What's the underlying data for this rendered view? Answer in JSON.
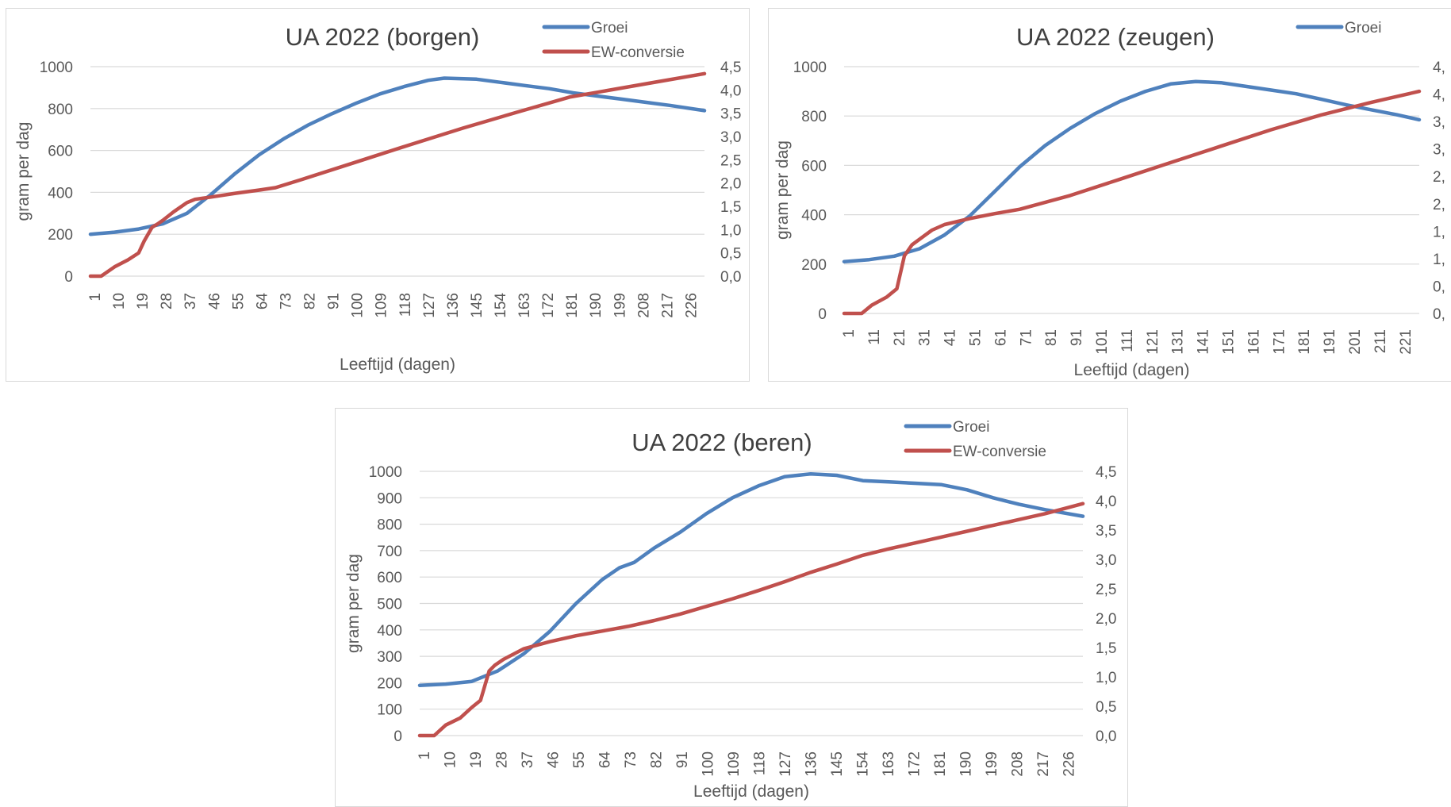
{
  "colors": {
    "groei": "#4f81bd",
    "ew": "#c0504d",
    "grid": "#d9d9d9",
    "text": "#595959"
  },
  "chart_data": [
    {
      "id": "borgen",
      "type": "line",
      "title": "UA 2022 (borgen)",
      "xlabel": "Leeftijd (dagen)",
      "ylabel": "gram per dag",
      "ylim": [
        0,
        1000
      ],
      "y_ticks": [
        "0",
        "200",
        "400",
        "600",
        "800",
        "1000"
      ],
      "y2lim": [
        0,
        4.5
      ],
      "y2_ticks": [
        "0,0",
        "0,5",
        "1,0",
        "1,5",
        "2,0",
        "2,5",
        "3,0",
        "3,5",
        "4,0",
        "4,5"
      ],
      "xlim": [
        1,
        230
      ],
      "x_ticks": [
        "1",
        "10",
        "19",
        "28",
        "37",
        "46",
        "55",
        "64",
        "73",
        "82",
        "91",
        "100",
        "109",
        "118",
        "127",
        "136",
        "145",
        "154",
        "163",
        "172",
        "181",
        "190",
        "199",
        "208",
        "217",
        "226"
      ],
      "grid": "horizontal",
      "legend_placement": "top-right",
      "series": [
        {
          "name": "Groei",
          "axis": "left",
          "x": [
            1,
            10,
            19,
            28,
            37,
            46,
            55,
            64,
            73,
            82,
            91,
            100,
            109,
            118,
            127,
            133,
            145,
            154,
            163,
            172,
            181,
            190,
            199,
            208,
            217,
            230
          ],
          "y": [
            200,
            210,
            225,
            250,
            300,
            390,
            490,
            580,
            655,
            720,
            775,
            825,
            870,
            905,
            935,
            945,
            940,
            925,
            910,
            895,
            875,
            860,
            845,
            830,
            815,
            790
          ]
        },
        {
          "name": "EW-conversie",
          "axis": "right",
          "x": [
            1,
            5,
            10,
            15,
            19,
            21,
            24,
            26,
            28,
            32,
            37,
            40,
            46,
            55,
            64,
            70,
            80,
            100,
            120,
            140,
            160,
            180,
            190,
            210,
            230
          ],
          "y": [
            0,
            0,
            0.2,
            0.35,
            0.5,
            0.75,
            1.05,
            1.12,
            1.2,
            1.38,
            1.58,
            1.65,
            1.7,
            1.78,
            1.85,
            1.9,
            2.08,
            2.45,
            2.82,
            3.18,
            3.52,
            3.85,
            3.95,
            4.15,
            4.35
          ]
        }
      ]
    },
    {
      "id": "zeugen",
      "type": "line",
      "title": "UA 2022 (zeugen)",
      "xlabel": "Leeftijd (dagen)",
      "ylabel": "gram per dag",
      "ylim": [
        0,
        1000
      ],
      "y_ticks": [
        "0",
        "200",
        "400",
        "600",
        "800",
        "1000"
      ],
      "y2_ticks": [
        "0,",
        "0,",
        "1,",
        "1,",
        "2,",
        "2,",
        "3,",
        "3,",
        "4,",
        "4,"
      ],
      "xlim": [
        1,
        230
      ],
      "x_ticks": [
        "1",
        "11",
        "21",
        "31",
        "41",
        "51",
        "61",
        "71",
        "81",
        "91",
        "101",
        "111",
        "121",
        "131",
        "141",
        "151",
        "161",
        "171",
        "181",
        "191",
        "201",
        "211",
        "221"
      ],
      "grid": "horizontal",
      "legend_placement": "top-right",
      "series": [
        {
          "name": "Groei",
          "axis": "left",
          "x": [
            1,
            11,
            21,
            31,
            41,
            51,
            61,
            71,
            81,
            91,
            101,
            111,
            121,
            131,
            141,
            151,
            161,
            171,
            181,
            191,
            201,
            211,
            221,
            230
          ],
          "y": [
            210,
            218,
            232,
            262,
            318,
            395,
            495,
            595,
            680,
            750,
            810,
            860,
            900,
            930,
            940,
            935,
            920,
            905,
            890,
            868,
            845,
            825,
            805,
            785
          ]
        },
        {
          "name": "EW-conversie",
          "axis": "right",
          "x": [
            1,
            8,
            12,
            18,
            22,
            25,
            28,
            33,
            36,
            41,
            51,
            61,
            71,
            91,
            111,
            131,
            151,
            171,
            191,
            211,
            230
          ],
          "y": [
            0,
            0,
            0.15,
            0.3,
            0.45,
            1.05,
            1.25,
            1.42,
            1.52,
            1.62,
            1.73,
            1.82,
            1.9,
            2.15,
            2.45,
            2.75,
            3.05,
            3.35,
            3.62,
            3.85,
            4.05
          ]
        }
      ]
    },
    {
      "id": "beren",
      "type": "line",
      "title": "UA 2022 (beren)",
      "xlabel": "Leeftijd (dagen)",
      "ylabel": "gram per dag",
      "ylim": [
        0,
        1000
      ],
      "y_ticks": [
        "0",
        "100",
        "200",
        "300",
        "400",
        "500",
        "600",
        "700",
        "800",
        "900",
        "1000"
      ],
      "y2lim": [
        0,
        4.5
      ],
      "y2_ticks": [
        "0,0",
        "0,5",
        "1,0",
        "1,5",
        "2,0",
        "2,5",
        "3,0",
        "3,5",
        "4,0",
        "4,5"
      ],
      "xlim": [
        1,
        230
      ],
      "x_ticks": [
        "1",
        "10",
        "19",
        "28",
        "37",
        "46",
        "55",
        "64",
        "73",
        "82",
        "91",
        "100",
        "109",
        "118",
        "127",
        "136",
        "145",
        "154",
        "163",
        "172",
        "181",
        "190",
        "199",
        "208",
        "217",
        "226"
      ],
      "grid": "horizontal",
      "legend_placement": "top-right",
      "series": [
        {
          "name": "Groei",
          "axis": "left",
          "x": [
            1,
            10,
            19,
            28,
            37,
            46,
            55,
            64,
            70,
            75,
            82,
            91,
            100,
            109,
            118,
            127,
            136,
            145,
            154,
            163,
            172,
            181,
            190,
            199,
            208,
            217,
            230
          ],
          "y": [
            190,
            195,
            205,
            245,
            310,
            395,
            500,
            590,
            635,
            655,
            710,
            770,
            840,
            900,
            945,
            980,
            990,
            985,
            965,
            960,
            955,
            950,
            930,
            900,
            875,
            855,
            830
          ]
        },
        {
          "name": "EW-conversie",
          "axis": "right",
          "x": [
            1,
            6,
            10,
            15,
            19,
            22,
            25,
            27,
            30,
            37,
            46,
            55,
            64,
            73,
            82,
            91,
            100,
            109,
            118,
            127,
            136,
            145,
            154,
            163,
            172,
            181,
            190,
            199,
            208,
            217,
            230
          ],
          "y": [
            0,
            0,
            0.18,
            0.3,
            0.48,
            0.6,
            1.1,
            1.2,
            1.3,
            1.48,
            1.6,
            1.7,
            1.78,
            1.86,
            1.96,
            2.07,
            2.2,
            2.33,
            2.47,
            2.62,
            2.78,
            2.92,
            3.07,
            3.18,
            3.28,
            3.38,
            3.48,
            3.58,
            3.68,
            3.78,
            3.95
          ]
        }
      ]
    }
  ]
}
